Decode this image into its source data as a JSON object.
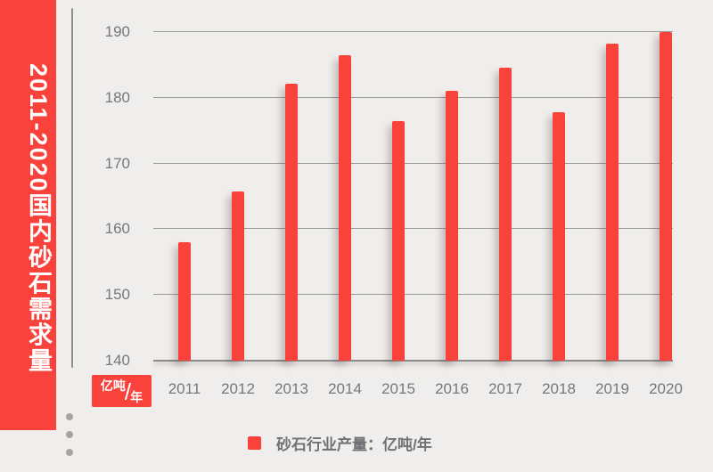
{
  "banner": {
    "title": "2011-2020国内砂石需求量"
  },
  "unit_badge": {
    "numerator": "亿吨",
    "slash": "/",
    "denominator": "年"
  },
  "legend": {
    "label": "砂石行业产量：亿吨/年"
  },
  "colors": {
    "accent_red": "#f9423c",
    "background": "#f0eeec",
    "axis_text": "#77777b",
    "gridline": "#9b9b99",
    "dots": "#a8a5a1"
  },
  "chart_data": {
    "type": "bar",
    "title": "2011-2020国内砂石需求量",
    "categories": [
      "2011",
      "2012",
      "2013",
      "2014",
      "2015",
      "2016",
      "2017",
      "2018",
      "2019",
      "2020"
    ],
    "values": [
      158,
      165.8,
      182.2,
      186.5,
      176.4,
      181,
      184.6,
      177.8,
      188.2,
      190
    ],
    "series_name": "砂石行业产量",
    "unit": "亿吨/年",
    "xlabel": "",
    "ylabel": "亿吨/年",
    "ylim": [
      140,
      190
    ],
    "yticks": [
      140,
      150,
      160,
      170,
      180,
      190
    ],
    "grid": true,
    "legend": [
      "砂石行业产量：亿吨/年"
    ],
    "legend_position": "bottom",
    "bar_color": "#f9423c"
  }
}
